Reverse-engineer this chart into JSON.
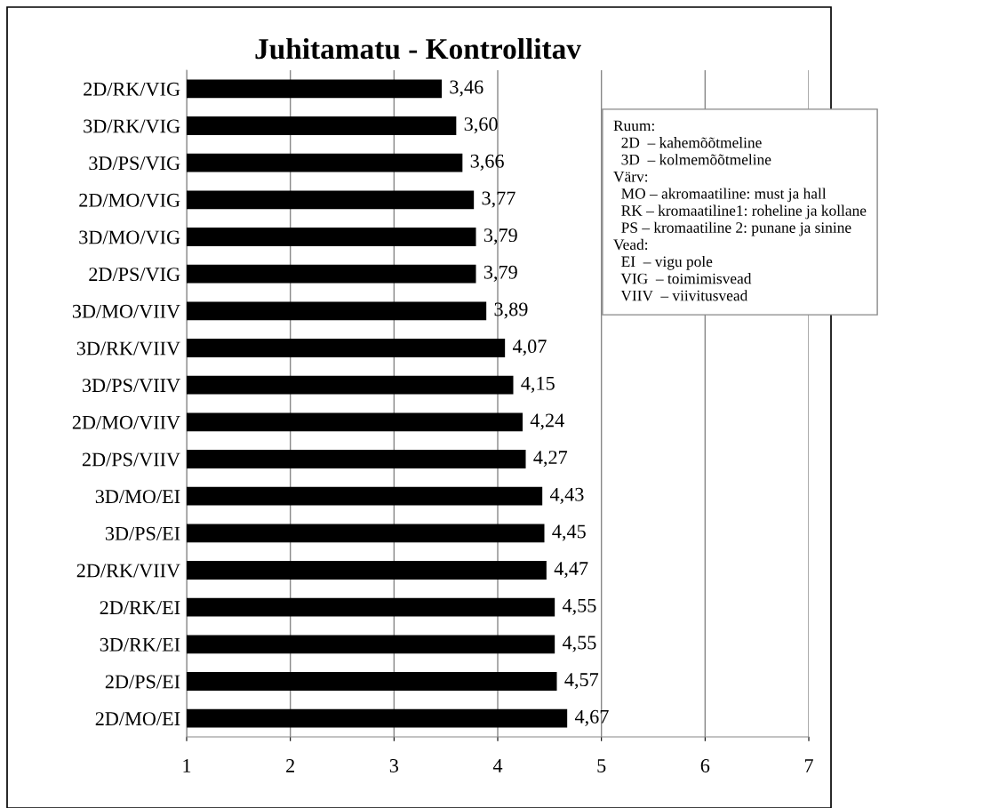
{
  "chart_data": {
    "type": "bar",
    "orientation": "horizontal",
    "title": "Juhitamatu - Kontrollitav",
    "categories": [
      "2D/RK/VIG",
      "3D/RK/VIG",
      "3D/PS/VIG",
      "2D/MO/VIG",
      "3D/MO/VIG",
      "2D/PS/VIG",
      "3D/MO/VIIV",
      "3D/RK/VIIV",
      "3D/PS/VIIV",
      "2D/MO/VIIV",
      "2D/PS/VIIV",
      "3D/MO/EI",
      "3D/PS/EI",
      "2D/RK/VIIV",
      "2D/RK/EI",
      "3D/RK/EI",
      "2D/PS/EI",
      "2D/MO/EI"
    ],
    "values": [
      3.46,
      3.6,
      3.66,
      3.77,
      3.79,
      3.79,
      3.89,
      4.07,
      4.15,
      4.24,
      4.27,
      4.43,
      4.45,
      4.47,
      4.55,
      4.55,
      4.57,
      4.67
    ],
    "value_labels": [
      "3,46",
      "3,60",
      "3,66",
      "3,77",
      "3,79",
      "3,79",
      "3,89",
      "4,07",
      "4,15",
      "4,24",
      "4,27",
      "4,43",
      "4,45",
      "4,47",
      "4,55",
      "4,55",
      "4,57",
      "4,67"
    ],
    "color": "#000000",
    "xlim": [
      1,
      7
    ],
    "xticks": [
      1,
      2,
      3,
      4,
      5,
      6,
      7
    ],
    "grid": "x",
    "annotations": [
      "Ruum:\n  2D  – kahemõõtmeline\n  3D  – kolmemõõtmeline\nVärv:\n  MO – akromaatiline: must ja hall\n  RK – kromaatiline1: roheline ja kollane\n  PS – kromaatiline 2: punane ja sinine\nVead:\n  EI  – vigu pole\n  VIG  – toimimisvead\n  VIIV  – viivitusvead"
    ]
  }
}
